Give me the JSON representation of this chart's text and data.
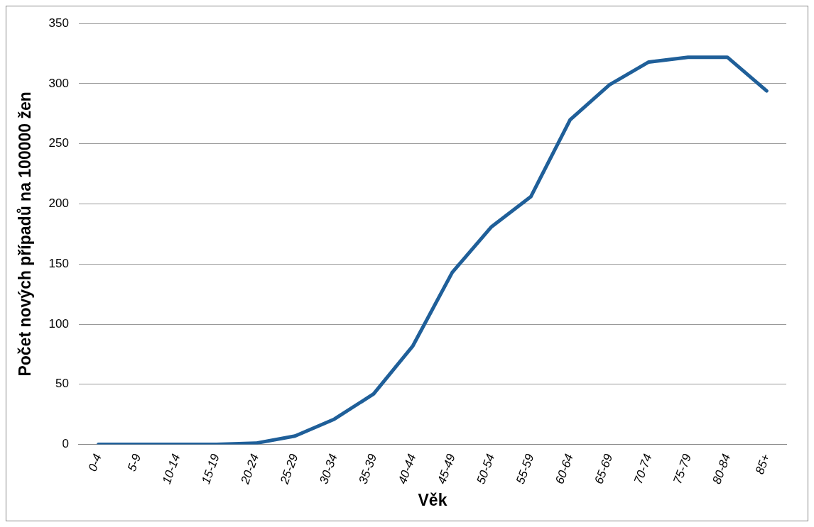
{
  "chart_data": {
    "type": "line",
    "xlabel": "Věk",
    "ylabel": "Počet nových případů na 100000 žen",
    "categories": [
      "0-4",
      "5-9",
      "10-14",
      "15-19",
      "20-24",
      "25-29",
      "30-34",
      "35-39",
      "40-44",
      "45-49",
      "50-54",
      "55-59",
      "60-64",
      "65-69",
      "70-74",
      "75-79",
      "80-84",
      "85+"
    ],
    "series": [
      {
        "color": "#1f5f99",
        "values": [
          0,
          0,
          0,
          0,
          1,
          7,
          21,
          42,
          82,
          143,
          181,
          206,
          270,
          299,
          318,
          322,
          322,
          294
        ]
      }
    ],
    "ylim": [
      0,
      350
    ],
    "yticks": [
      0,
      50,
      100,
      150,
      200,
      250,
      300,
      350
    ],
    "grid": "y",
    "legend": false,
    "marker": "none",
    "line_style": "solid"
  }
}
